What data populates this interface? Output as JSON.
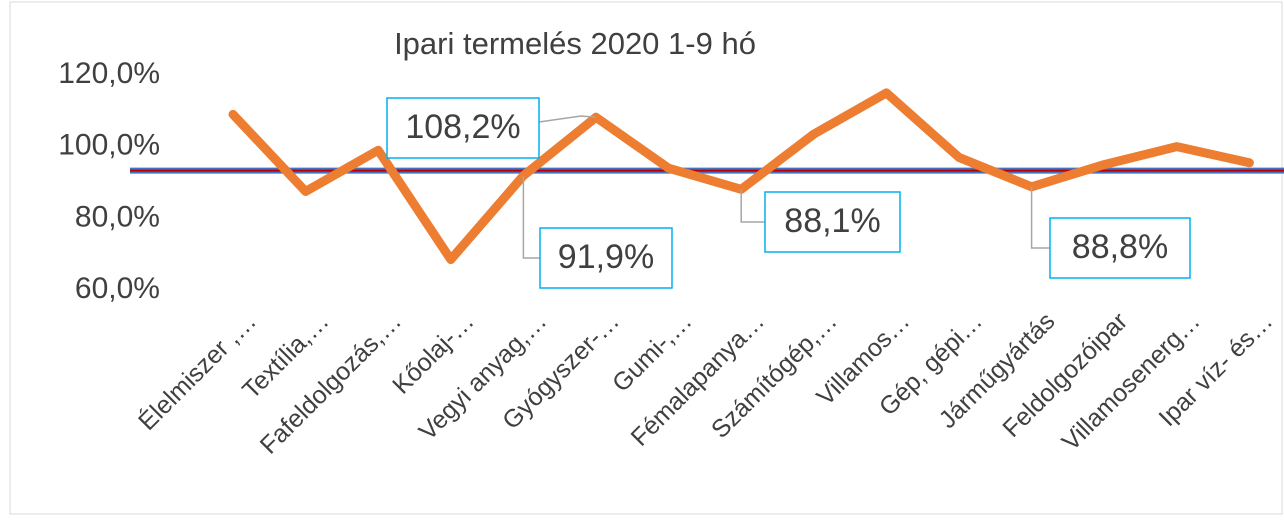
{
  "chart_data": {
    "type": "line",
    "title": "Ipari termelés 2020 1-9 hó",
    "categories": [
      "Élelmiszer ,…",
      "Textília,…",
      "Fafeldolgozás,…",
      "Kőolaj-…",
      "Vegyi anyag,…",
      "Gyógyszer-…",
      "Gumi-,…",
      "Fémalapanya…",
      "Számítógép,…",
      "Villamos…",
      "Gép, gépi…",
      "Járműgyártás",
      "Feldolgozóipar",
      "Villamosenerg…",
      "Ipar víz- és…"
    ],
    "series": [
      {
        "color": "#ed7d31",
        "values": [
          109,
          87.5,
          99,
          68.5,
          91.9,
          108.2,
          94,
          88.1,
          103.5,
          115,
          97,
          88.8,
          95,
          100,
          95.5
        ],
        "value_labels": [
          null,
          null,
          null,
          null,
          "91,9%",
          "108,2%",
          null,
          "88,1%",
          null,
          null,
          null,
          "88,8%",
          null,
          null,
          null
        ]
      }
    ],
    "reference_value": 93.3,
    "reference_color": "#c00000",
    "ylim": [
      60,
      120
    ],
    "yticks": [
      {
        "value": 60,
        "label": "60,0%"
      },
      {
        "value": 80,
        "label": "80,0%"
      },
      {
        "value": 100,
        "label": "100,0%"
      },
      {
        "value": 120,
        "label": "120,0%"
      }
    ]
  }
}
